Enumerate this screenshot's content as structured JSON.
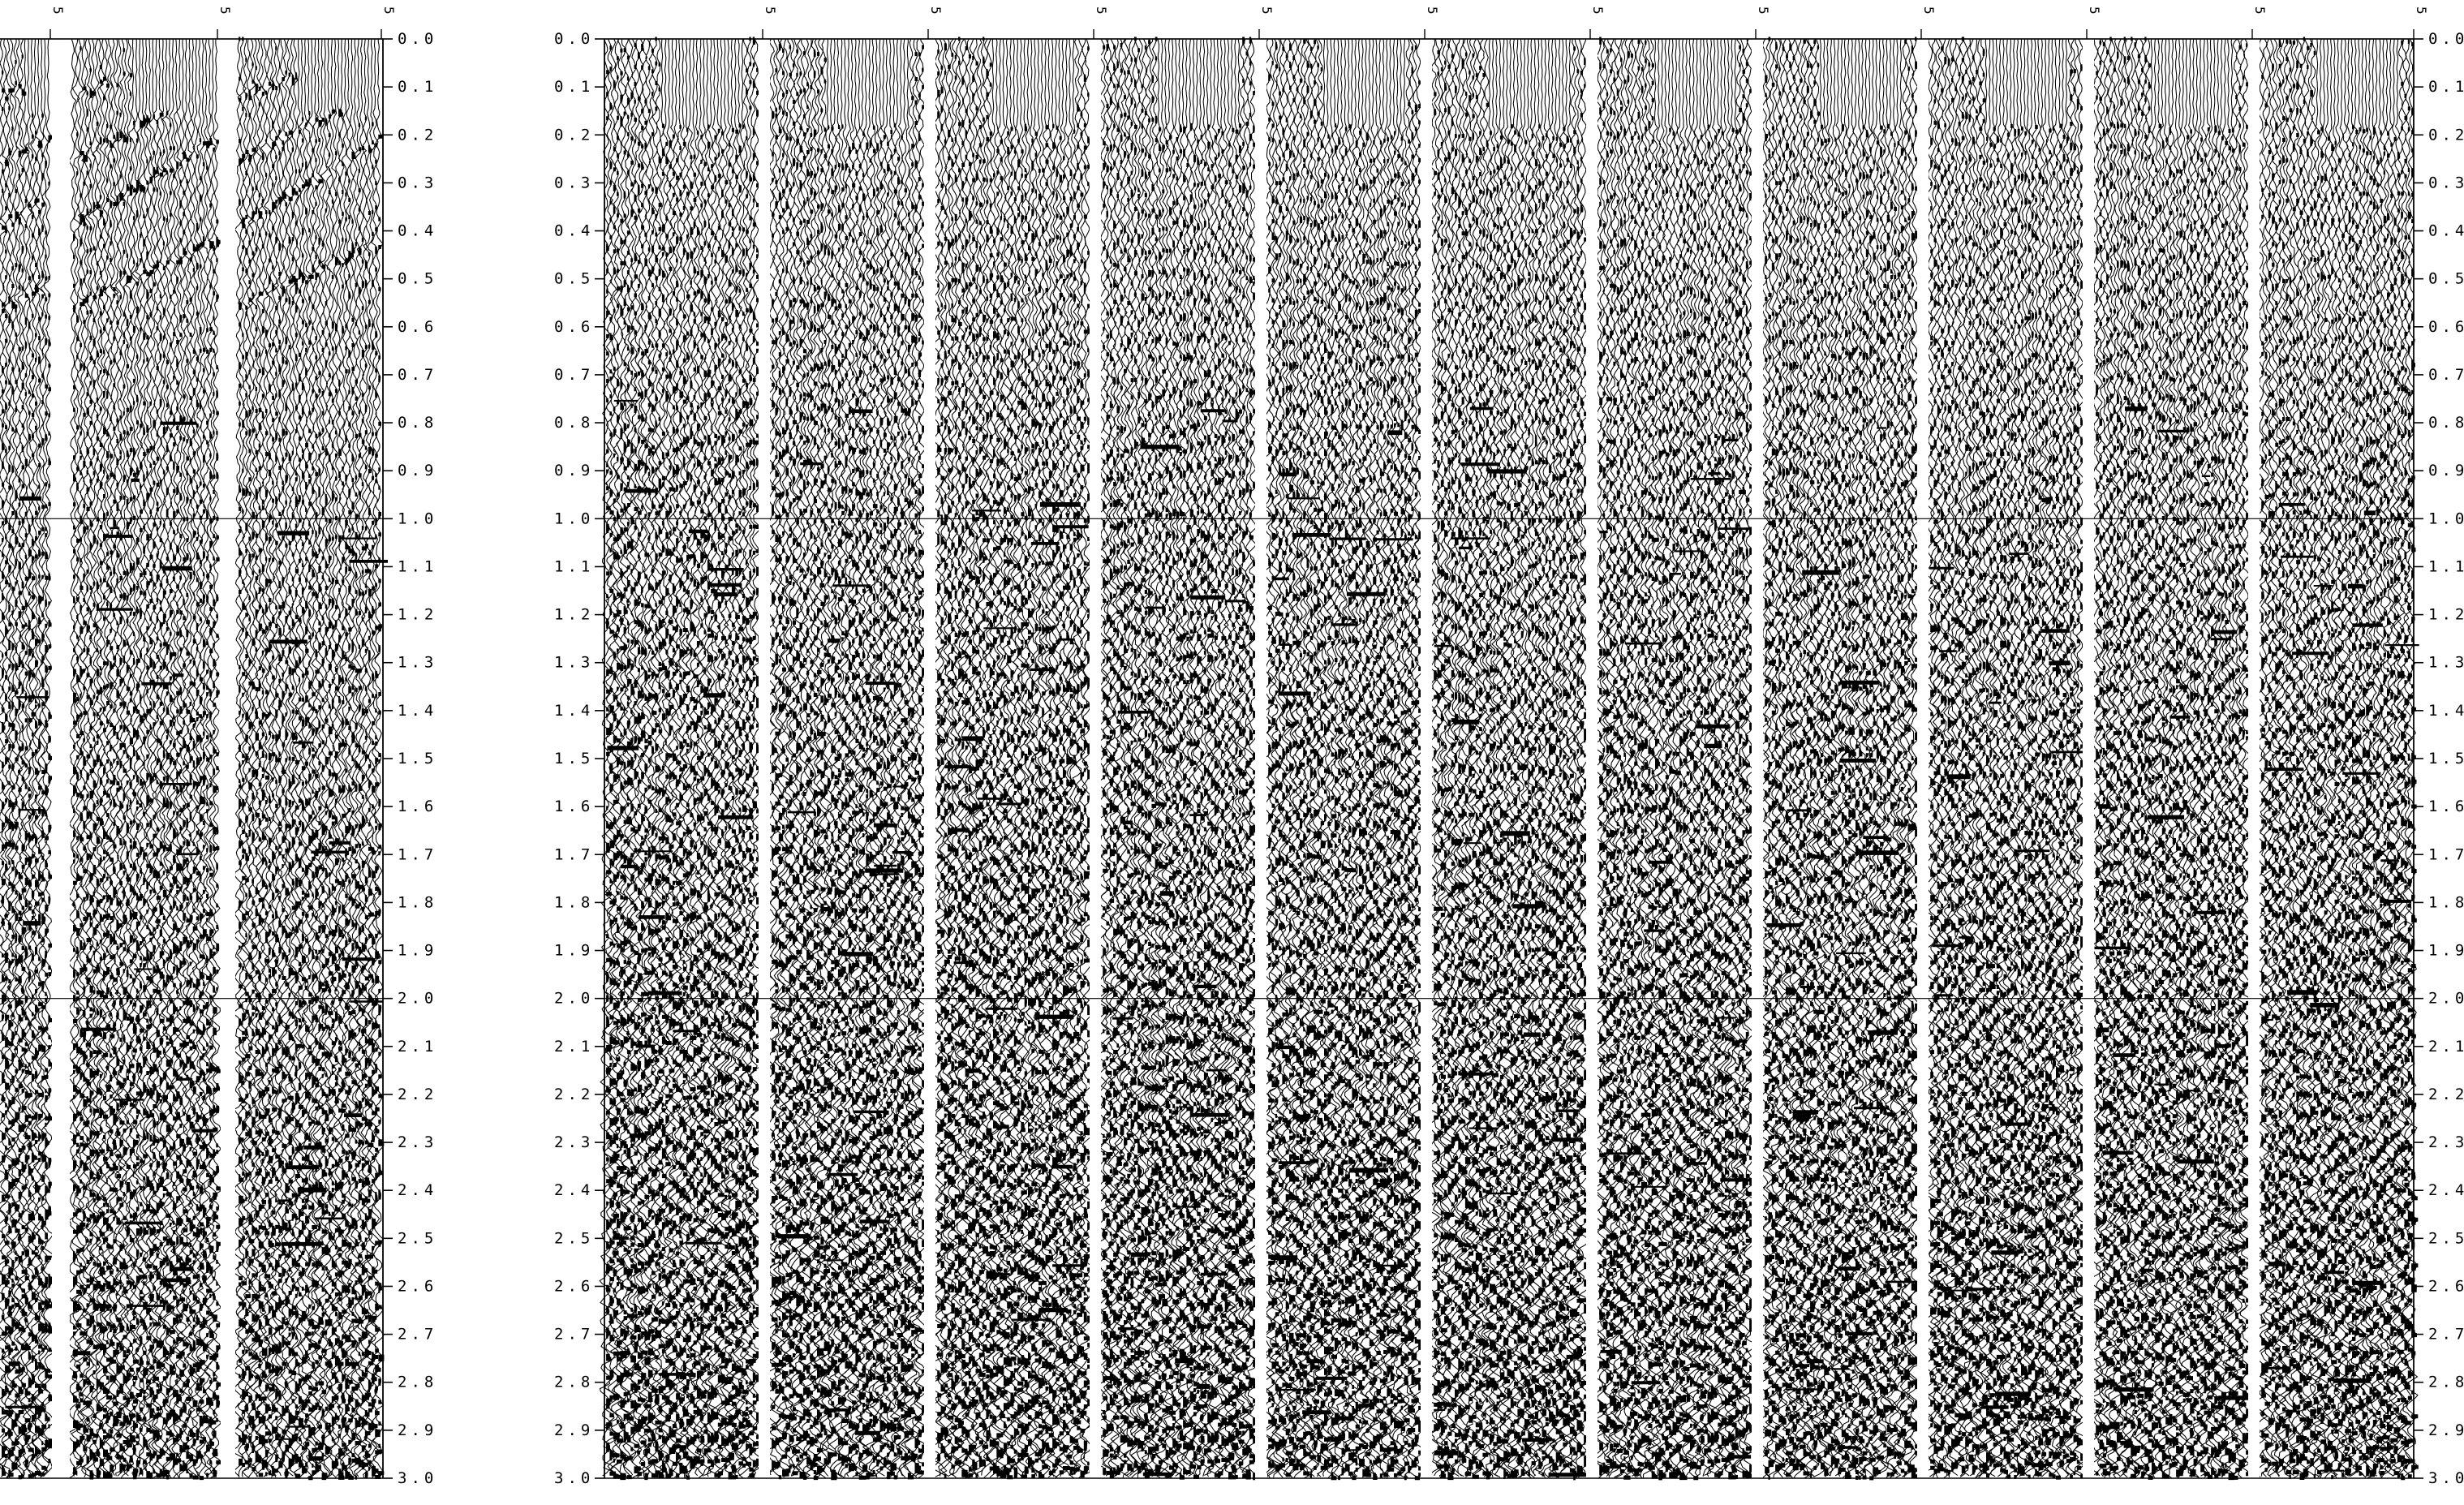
{
  "left_panel": {
    "panel_count": 3,
    "header_labels": [
      "5",
      "5",
      "5"
    ],
    "time_labels": [
      "0.0",
      "0.1",
      "0.2",
      "0.3",
      "0.4",
      "0.5",
      "0.6",
      "0.7",
      "0.8",
      "0.9",
      "1.0",
      "1.1",
      "1.2",
      "1.3",
      "1.4",
      "1.5",
      "1.6",
      "1.7",
      "1.8",
      "1.9",
      "2.0",
      "2.1",
      "2.2",
      "2.3",
      "2.4",
      "2.5",
      "2.6",
      "2.7",
      "2.8",
      "2.9",
      "3.0"
    ]
  },
  "right_panel": {
    "panel_count": 11,
    "header_labels": [
      "5",
      "5",
      "5",
      "5",
      "5",
      "5",
      "5",
      "5",
      "5",
      "5",
      "5"
    ],
    "left_time_labels": [
      "0.0",
      "0.1",
      "0.2",
      "0.3",
      "0.4",
      "0.5",
      "0.6",
      "0.7",
      "0.8",
      "0.9",
      "1.0",
      "1.1",
      "1.2",
      "1.3",
      "1.4",
      "1.5",
      "1.6",
      "1.7",
      "1.8",
      "1.9",
      "2.0",
      "2.1",
      "2.2",
      "2.3",
      "2.4",
      "2.5",
      "2.6",
      "2.7",
      "2.8",
      "2.9",
      "3.0"
    ],
    "right_time_labels": [
      "0.0",
      "0.1",
      "0.2",
      "0.3",
      "0.4",
      "0.5",
      "0.6",
      "0.7",
      "0.8",
      "0.9",
      "1.0",
      "1.1",
      "1.2",
      "1.3",
      "1.4",
      "1.5",
      "1.6",
      "1.7",
      "1.8",
      "1.9",
      "2.0",
      "2.1",
      "2.2",
      "2.3",
      "2.4",
      "2.5",
      "2.6",
      "2.7",
      "2.8",
      "2.9",
      "3.0"
    ]
  },
  "colors": {
    "ink": "#000000",
    "paper": "#ffffff"
  }
}
